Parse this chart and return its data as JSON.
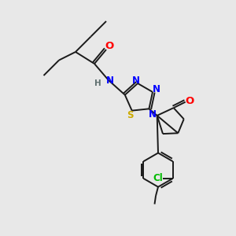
{
  "bg_color": "#e8e8e8",
  "bond_color": "#1a1a1a",
  "bond_width": 1.4,
  "atom_colors": {
    "N": "#0000ff",
    "O": "#ff0000",
    "S": "#ccaa00",
    "Cl": "#00bb00",
    "H": "#607070",
    "C": "#1a1a1a"
  },
  "fs": 8.5
}
